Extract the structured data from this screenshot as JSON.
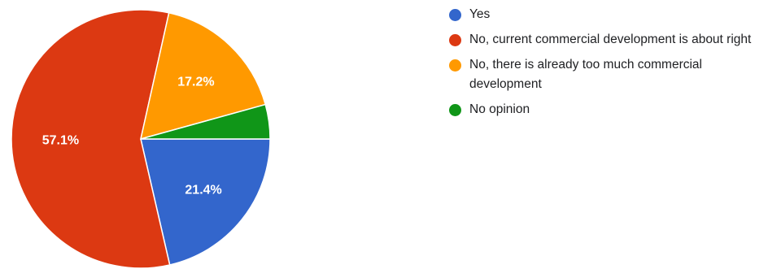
{
  "chart_data": {
    "type": "pie",
    "categories": [
      "Yes",
      "No, current commercial development is about right",
      "No, there is already too much commercial development",
      "No opinion"
    ],
    "values": [
      21.4,
      57.1,
      17.2,
      4.3
    ],
    "value_labels": [
      "21.4%",
      "57.1%",
      "17.2%",
      ""
    ],
    "colors": [
      "#3366cc",
      "#dc3912",
      "#ff9900",
      "#109618"
    ],
    "legend_position": "right",
    "start_angle": "3 o'clock, clockwise"
  },
  "legend": {
    "items": [
      {
        "label": "Yes",
        "color": "#3366cc"
      },
      {
        "label": "No, current commercial development is about right",
        "color": "#dc3912"
      },
      {
        "label": "No, there is already too much commercial development",
        "color": "#ff9900"
      },
      {
        "label": "No opinion",
        "color": "#109618"
      }
    ]
  }
}
